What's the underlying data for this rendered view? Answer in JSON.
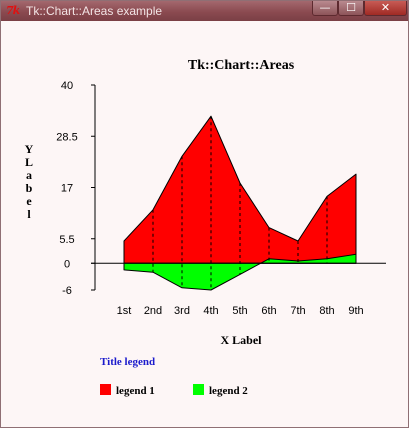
{
  "window": {
    "title": "Tk::Chart::Areas example",
    "app_icon_text": "7k",
    "controls": {
      "minimize": "—",
      "maximize": "☐",
      "close": "✕"
    }
  },
  "chart_data": {
    "type": "area",
    "title": "Tk::Chart::Areas",
    "xlabel": "X Label",
    "ylabel": "Y Label",
    "categories": [
      "1st",
      "2nd",
      "3rd",
      "4th",
      "5th",
      "6th",
      "7th",
      "8th",
      "9th"
    ],
    "yticks": [
      "40",
      "28.5",
      "17",
      "5.5",
      "0",
      "-6"
    ],
    "ylim": [
      -6,
      40
    ],
    "series": [
      {
        "name": "legend 1",
        "color": "#ff0000",
        "values": [
          5,
          12,
          24,
          33,
          18,
          8,
          5,
          15,
          20
        ]
      },
      {
        "name": "legend 2",
        "color": "#00ff00",
        "values": [
          -1.5,
          -2,
          -5.5,
          -6,
          -2.5,
          1,
          0.5,
          1,
          2
        ]
      }
    ],
    "legend": {
      "title": "Title legend",
      "title_color": "#1a1acc",
      "placement": "bottom-left"
    },
    "grid": false
  }
}
